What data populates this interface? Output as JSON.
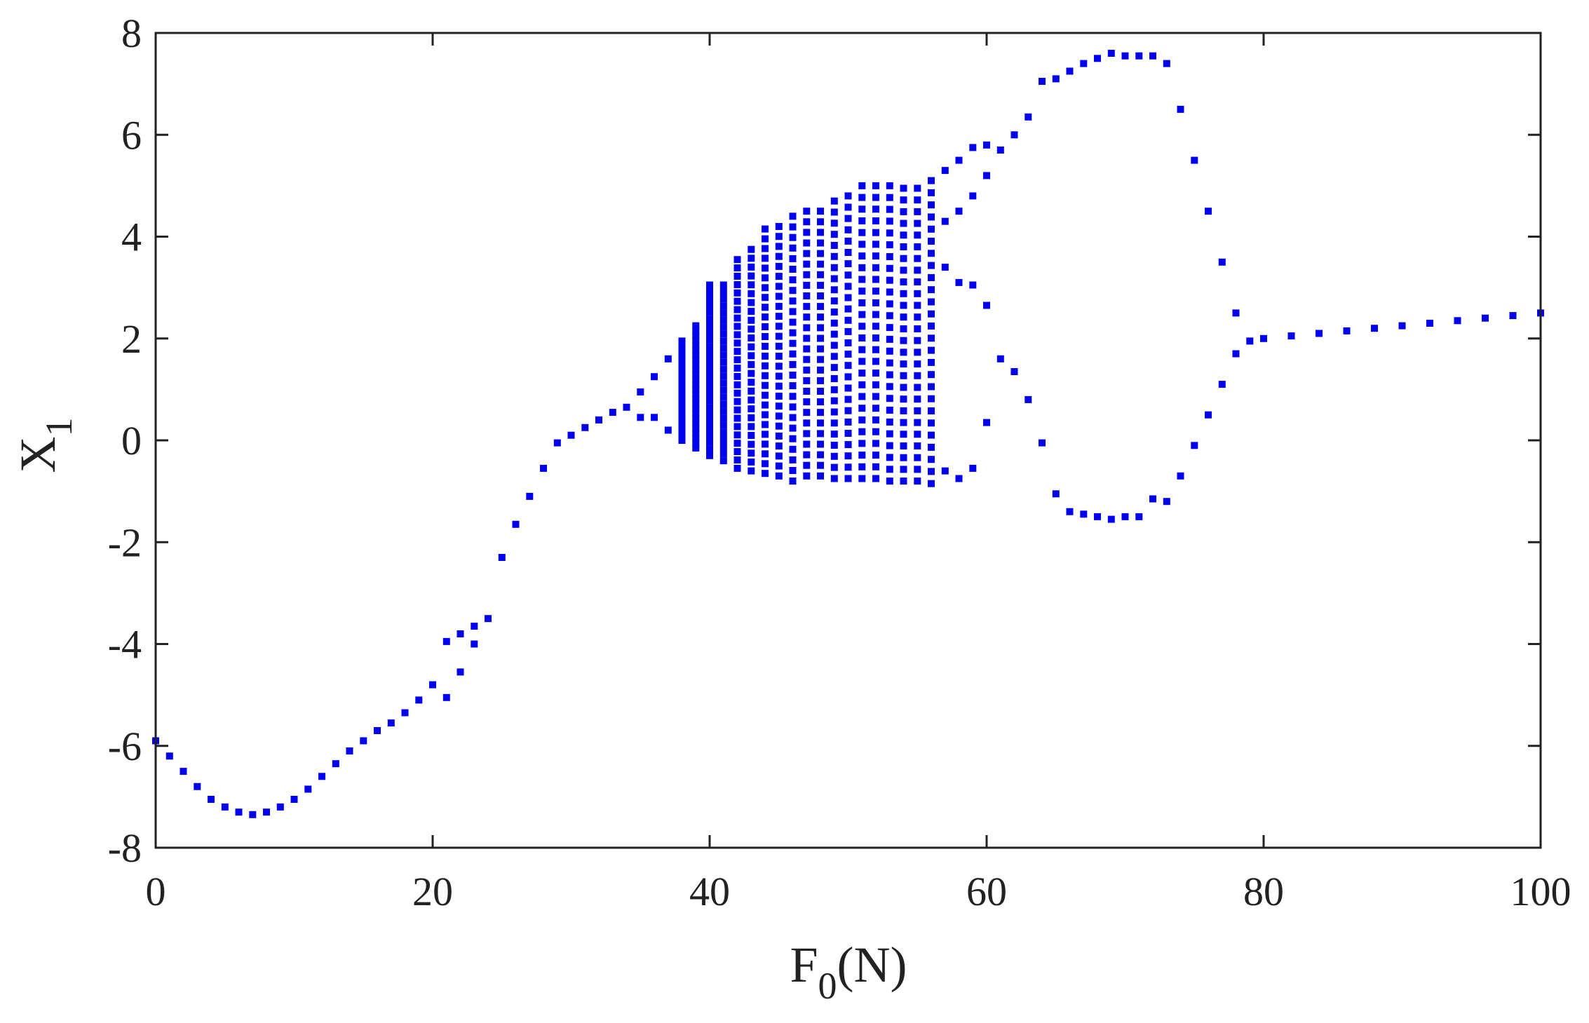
{
  "chart_data": {
    "type": "scatter",
    "xlabel": "F",
    "xlabel_sub": "0",
    "xlabel_suffix": "(N)",
    "ylabel": "X",
    "ylabel_sub": "1",
    "xlim": [
      0,
      100
    ],
    "ylim": [
      -8,
      8
    ],
    "xticks": [
      0,
      20,
      40,
      60,
      80,
      100
    ],
    "yticks": [
      8,
      6,
      4,
      2,
      0,
      -2,
      -4,
      -6,
      -8
    ],
    "grid": false,
    "marker_color": "#0000ee",
    "branches": [
      {
        "name": "",
        "x": [
          0,
          1,
          2,
          3,
          4,
          5,
          6,
          7,
          8,
          9,
          10,
          11,
          12,
          13,
          14,
          15,
          16,
          17,
          18,
          19,
          20,
          21,
          22,
          23,
          24,
          25,
          26,
          27,
          28,
          29,
          30,
          31,
          32,
          33,
          34,
          35,
          36,
          37
        ],
        "y": [
          -5.9,
          -6.2,
          -6.5,
          -6.8,
          -7.05,
          -7.2,
          -7.3,
          -7.35,
          -7.3,
          -7.2,
          -7.05,
          -6.85,
          -6.6,
          -6.35,
          -6.1,
          -5.9,
          -5.7,
          -5.55,
          -5.35,
          -5.1,
          -4.8,
          -3.95,
          -3.8,
          -3.65,
          -3.5,
          -2.3,
          -1.65,
          -1.1,
          -0.55,
          -0.05,
          0.1,
          0.25,
          0.4,
          0.55,
          0.65,
          0.95,
          1.25,
          1.6
        ]
      },
      {
        "name": "",
        "x": [
          21,
          22,
          23,
          35,
          36,
          37
        ],
        "y": [
          -5.05,
          -4.55,
          -4.0,
          0.45,
          0.45,
          0.2
        ]
      },
      {
        "name": "",
        "x": [
          57,
          58,
          59,
          60,
          61,
          62,
          63,
          64,
          65,
          66,
          67,
          68,
          69,
          70,
          71,
          72,
          73,
          74,
          75,
          76,
          77,
          78,
          79,
          80,
          82,
          84,
          86,
          88,
          90,
          92,
          94,
          96,
          98,
          100
        ],
        "y": [
          5.3,
          5.5,
          5.75,
          5.8,
          5.7,
          6.0,
          6.35,
          7.05,
          7.1,
          7.25,
          7.4,
          7.5,
          7.6,
          7.55,
          7.55,
          7.55,
          7.4,
          6.5,
          5.5,
          4.5,
          3.5,
          2.5,
          1.95,
          2.0,
          2.05,
          2.1,
          2.15,
          2.2,
          2.25,
          2.3,
          2.35,
          2.4,
          2.45,
          2.5
        ]
      },
      {
        "name": "",
        "x": [
          57,
          58,
          59,
          60,
          61,
          62,
          63,
          64,
          65,
          66,
          67,
          68,
          69,
          70,
          71,
          72,
          73,
          74,
          75,
          76,
          77,
          78
        ],
        "y": [
          -0.6,
          -0.75,
          -0.55,
          0.35,
          1.6,
          1.35,
          0.8,
          -0.05,
          -1.05,
          -1.4,
          -1.45,
          -1.5,
          -1.55,
          -1.5,
          -1.5,
          -1.15,
          -1.2,
          -0.7,
          -0.1,
          0.5,
          1.1,
          1.7
        ]
      },
      {
        "name": "",
        "x": [
          57,
          58,
          59,
          60
        ],
        "y": [
          4.3,
          4.5,
          4.8,
          5.2
        ]
      },
      {
        "name": "",
        "x": [
          57,
          58,
          59,
          60
        ],
        "y": [
          3.4,
          3.1,
          3.05,
          2.65
        ]
      }
    ],
    "chaotic_band": {
      "x": [
        38,
        39,
        40,
        41,
        42,
        43,
        44,
        45,
        46,
        47,
        48,
        49,
        50,
        51,
        52,
        53,
        54,
        55,
        56
      ],
      "ymin": [
        0.0,
        -0.15,
        -0.3,
        -0.4,
        -0.55,
        -0.6,
        -0.65,
        -0.7,
        -0.8,
        -0.7,
        -0.7,
        -0.75,
        -0.75,
        -0.75,
        -0.75,
        -0.8,
        -0.8,
        -0.8,
        -0.85
      ],
      "ymax": [
        1.95,
        2.25,
        3.05,
        3.05,
        3.55,
        3.75,
        4.15,
        4.2,
        4.4,
        4.5,
        4.5,
        4.7,
        4.8,
        5.0,
        5.0,
        5.0,
        4.95,
        4.95,
        5.1
      ],
      "points_per_column": 26
    }
  }
}
